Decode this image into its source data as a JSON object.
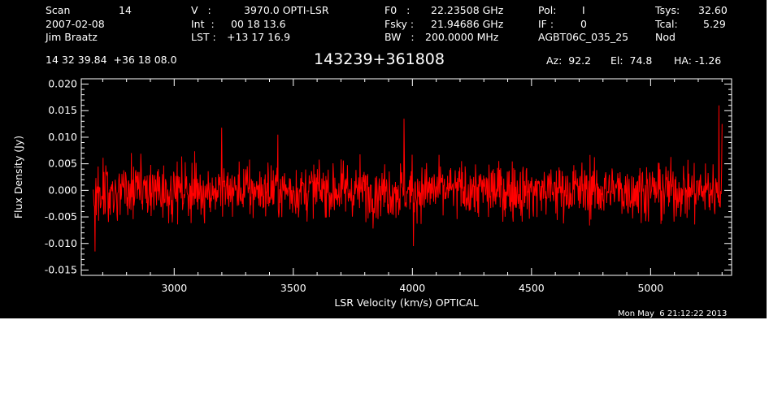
{
  "header": {
    "scan_label": "Scan",
    "scan_value": "14",
    "date": "2007-02-08",
    "observer": "Jim Braatz",
    "v_label": "V   :",
    "v_value": "3970.0 OPTI-LSR",
    "int_label": "Int  :",
    "int_value": "00 18 13.6",
    "lst_label": "LST :",
    "lst_value": "+13 17 16.9",
    "f0_label": "F0   :",
    "f0_value": "22.23508 GHz",
    "fsky_label": "Fsky :",
    "fsky_value": "21.94686 GHz",
    "bw_label": "BW   :",
    "bw_value": "200.0000 MHz",
    "pol_label": "Pol:",
    "pol_value": "I",
    "if_label": "IF :",
    "if_value": "0",
    "project": "AGBT06C_035_25",
    "tsys_label": "Tsys:",
    "tsys_value": "32.60",
    "tcal_label": "Tcal:",
    "tcal_value": "5.29",
    "mode": "Nod",
    "coords": "14 32 39.84  +36 18 08.0",
    "source": "143239+361808",
    "az": "Az:  92.2",
    "el": "El:  74.8",
    "ha": "HA: -1.26"
  },
  "timestamp": "Mon May  6 21:12:22 2013",
  "colors": {
    "background": "#000000",
    "axes": "#ffffff",
    "trace": "#ff0000"
  },
  "chart_data": {
    "type": "line",
    "xlabel": "LSR Velocity (km/s) OPTICAL",
    "ylabel": "Flux Density (Jy)",
    "xlim": [
      2610,
      5340
    ],
    "ylim": [
      -0.016,
      0.021
    ],
    "xticks": [
      3000,
      3500,
      4000,
      4500,
      5000
    ],
    "xtick_labels": [
      "3000",
      "3500",
      "4000",
      "4500",
      "5000"
    ],
    "yticks": [
      -0.015,
      -0.01,
      -0.005,
      0.0,
      0.005,
      0.01,
      0.015,
      0.02
    ],
    "ytick_labels": [
      "-0.015",
      "-0.010",
      "-0.005",
      "0.000",
      "0.005",
      "0.010",
      "0.015",
      "0.020"
    ],
    "grid": false,
    "series": [
      {
        "x_start": 2660,
        "x_end": 5300,
        "noise_rms": 0.0033,
        "features": [
          {
            "x": 2668,
            "y": -0.0115
          },
          {
            "x": 3200,
            "y": 0.0118
          },
          {
            "x": 3435,
            "y": 0.0105
          },
          {
            "x": 3965,
            "y": 0.0135
          },
          {
            "x": 4005,
            "y": -0.0105
          },
          {
            "x": 5287,
            "y": 0.016
          },
          {
            "x": 5300,
            "y": 0.0125
          }
        ]
      }
    ]
  }
}
